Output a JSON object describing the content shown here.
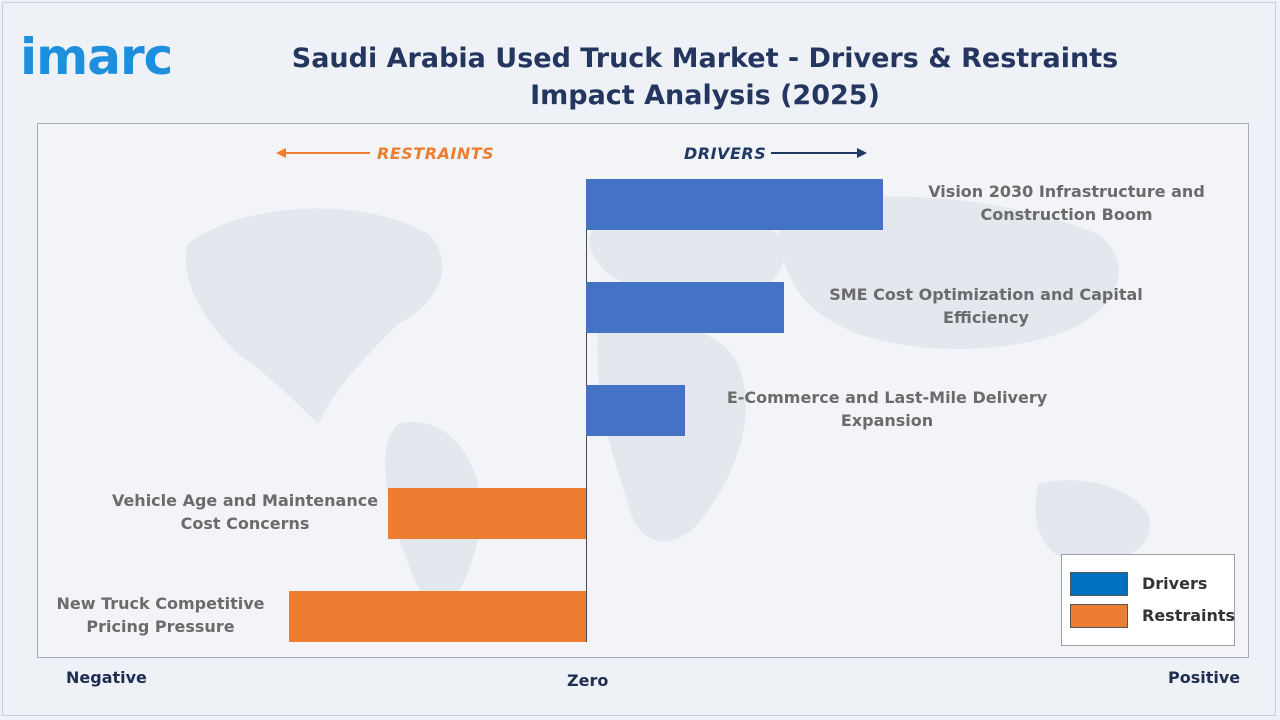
{
  "logo": {
    "text": "imarc",
    "color": "#1d8fdc"
  },
  "title": {
    "text": "Saudi Arabia Used Truck Market - Drivers & Restraints Impact Analysis (2025)",
    "color": "#24365f"
  },
  "directions": {
    "restraints": {
      "label": "RESTRAINTS",
      "color": "#ed7d31"
    },
    "drivers": {
      "label": "DRIVERS",
      "color": "#1f3864"
    }
  },
  "axis": {
    "negative": "Negative",
    "zero": "Zero",
    "positive": "Positive"
  },
  "legend": {
    "items": [
      {
        "label": "Drivers",
        "color": "#0070c0"
      },
      {
        "label": "Restraints",
        "color": "#ed7d31"
      }
    ]
  },
  "chart_data": {
    "type": "bar",
    "orientation": "horizontal",
    "title": "Saudi Arabia Used Truck Market - Drivers & Restraints Impact Analysis (2025)",
    "xlim": [
      -1,
      1
    ],
    "categories": [
      "Vision 2030 Infrastructure and Construction Boom",
      "SME Cost Optimization and Capital Efficiency",
      "E-Commerce and Last-Mile Delivery Expansion",
      "Vehicle Age and Maintenance Cost Concerns",
      "New Truck Competitive Pricing Pressure"
    ],
    "series": [
      {
        "name": "Drivers",
        "color": "#4472c4",
        "values": [
          0.6,
          0.4,
          0.2,
          null,
          null
        ]
      },
      {
        "name": "Restraints",
        "color": "#ed7d31",
        "values": [
          null,
          null,
          null,
          -0.4,
          -0.6
        ]
      }
    ],
    "legend_position": "bottom-right",
    "grid": false
  }
}
